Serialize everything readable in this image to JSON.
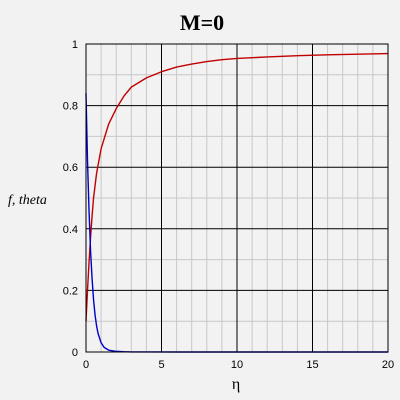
{
  "chart_data": {
    "type": "line",
    "title": "M=0",
    "xlabel": "η",
    "ylabel": "f, theta",
    "xlim": [
      0,
      20
    ],
    "ylim": [
      0,
      1
    ],
    "xticks": [
      0,
      5,
      10,
      15,
      20
    ],
    "yticks": [
      0,
      0.2,
      0.4,
      0.6,
      0.8,
      1
    ],
    "grid": true,
    "series": [
      {
        "color": "#c00000",
        "x": [
          0,
          0.1,
          0.2,
          0.3,
          0.4,
          0.5,
          0.7,
          1.0,
          1.5,
          2.0,
          2.5,
          3.0,
          4.0,
          5.0,
          6.0,
          7.0,
          8.0,
          9.0,
          10.0,
          12.0,
          14.0,
          16.0,
          18.0,
          20.0
        ],
        "y": [
          0.1,
          0.2,
          0.29,
          0.37,
          0.44,
          0.5,
          0.58,
          0.66,
          0.74,
          0.79,
          0.83,
          0.86,
          0.89,
          0.91,
          0.925,
          0.935,
          0.943,
          0.949,
          0.953,
          0.958,
          0.962,
          0.965,
          0.967,
          0.969
        ]
      },
      {
        "color": "#0000c8",
        "x": [
          0,
          0.1,
          0.2,
          0.3,
          0.4,
          0.5,
          0.6,
          0.7,
          0.8,
          1.0,
          1.2,
          1.5,
          2.0,
          2.5,
          3.0,
          4.0,
          6.0,
          10.0,
          20.0
        ],
        "y": [
          0.84,
          0.62,
          0.46,
          0.33,
          0.24,
          0.17,
          0.12,
          0.085,
          0.06,
          0.03,
          0.015,
          0.006,
          0.002,
          0.0008,
          0.0003,
          0.0001,
          0,
          0,
          0
        ]
      }
    ]
  }
}
